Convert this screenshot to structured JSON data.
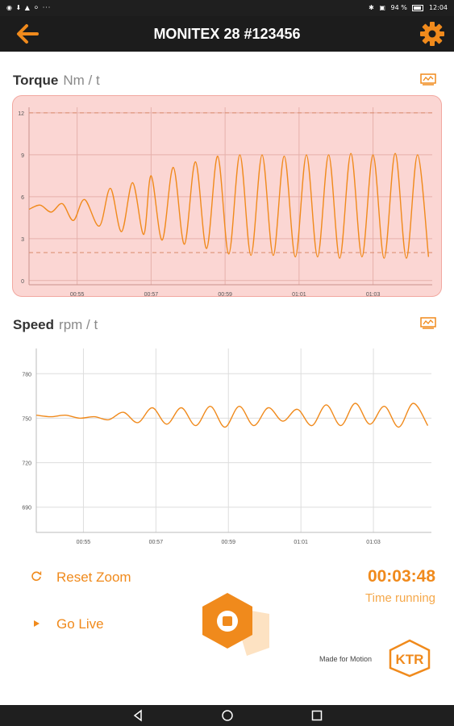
{
  "status_bar": {
    "left_icons": "◉ ⬇ ▲ ⚪ ···",
    "bluetooth": "✱",
    "signal": "▣",
    "battery_text": "94 %",
    "time": "12:04"
  },
  "app_bar": {
    "title": "MONITEX 28 #123456",
    "back_icon": "arrow-left-icon",
    "settings_icon": "gear-icon"
  },
  "torque": {
    "label": "Torque",
    "unit": "Nm / t",
    "export_icon": "chart-export-icon"
  },
  "speed": {
    "label": "Speed",
    "unit": "rpm / t",
    "export_icon": "chart-export-icon"
  },
  "colors": {
    "accent": "#f08a1c",
    "torque_background": "#fbd6d3",
    "torque_border": "#f2a8a0",
    "app_bar": "#1c1c1c"
  },
  "chart_data": [
    {
      "type": "line",
      "title": "Torque",
      "ylabel": "Nm / t",
      "xlim": [
        53.7,
        64.6
      ],
      "ylim": [
        -0.3,
        12.4
      ],
      "y_ticks": [
        "0",
        "3",
        "6",
        "9",
        "12"
      ],
      "x_ticks": [
        "00:55",
        "00:57",
        "00:59",
        "01:01",
        "01:03"
      ],
      "x_tick_values": [
        55,
        57,
        59,
        61,
        63
      ],
      "reference_lines": [
        12,
        2
      ],
      "grid": true,
      "background": "#fbd6d3",
      "series": [
        {
          "x": [
            53.7,
            54.0,
            54.3,
            54.6,
            54.9,
            55.2,
            55.6,
            55.9,
            56.2,
            56.5,
            56.8,
            57.0,
            57.3,
            57.6,
            57.9,
            58.2,
            58.5,
            58.8,
            59.1,
            59.4,
            59.7,
            60.0,
            60.3,
            60.6,
            60.9,
            61.2,
            61.5,
            61.8,
            62.1,
            62.4,
            62.7,
            63.0,
            63.3,
            63.6,
            63.9,
            64.2,
            64.5
          ],
          "y": [
            5.1,
            5.4,
            4.9,
            5.5,
            4.3,
            5.8,
            3.9,
            6.6,
            3.5,
            7.0,
            3.3,
            7.5,
            2.9,
            8.1,
            2.6,
            8.5,
            2.3,
            8.9,
            1.9,
            9.0,
            1.8,
            9.0,
            1.8,
            8.9,
            1.7,
            9.0,
            1.7,
            9.0,
            1.6,
            9.1,
            1.7,
            9.0,
            1.6,
            9.1,
            1.6,
            9.0,
            1.7
          ],
          "color": "#f08a1c"
        }
      ]
    },
    {
      "type": "line",
      "title": "Speed",
      "ylabel": "rpm / t",
      "xlim": [
        53.7,
        64.6
      ],
      "ylim": [
        673,
        797
      ],
      "y_ticks": [
        "690",
        "720",
        "750",
        "780"
      ],
      "y_tick_values": [
        690,
        720,
        750,
        780
      ],
      "x_ticks": [
        "00:55",
        "00:57",
        "00:59",
        "01:01",
        "01:03"
      ],
      "x_tick_values": [
        55,
        57,
        59,
        61,
        63
      ],
      "grid": true,
      "series": [
        {
          "x": [
            53.7,
            54.1,
            54.5,
            54.9,
            55.3,
            55.7,
            56.1,
            56.5,
            56.9,
            57.3,
            57.7,
            58.1,
            58.5,
            58.9,
            59.3,
            59.7,
            60.1,
            60.5,
            60.9,
            61.3,
            61.7,
            62.1,
            62.5,
            62.9,
            63.3,
            63.7,
            64.1,
            64.5
          ],
          "y": [
            752,
            751,
            752,
            750,
            751,
            749,
            754,
            747,
            757,
            746,
            757,
            745,
            758,
            744,
            758,
            745,
            757,
            748,
            756,
            745,
            759,
            745,
            760,
            746,
            758,
            744,
            760,
            745
          ],
          "color": "#f08a1c"
        }
      ]
    }
  ],
  "controls": {
    "reset_zoom_label": "Reset Zoom",
    "reset_zoom_icon": "refresh-icon",
    "go_live_label": "Go Live",
    "go_live_icon": "play-icon",
    "time_value": "00:03:48",
    "time_label": "Time running",
    "stop_icon": "stop-icon"
  },
  "branding": {
    "tagline": "Made for Motion",
    "logo_text": "KTR"
  },
  "nav_bar": {
    "back_icon": "nav-back-icon",
    "home_icon": "nav-home-icon",
    "recents_icon": "nav-recents-icon"
  }
}
